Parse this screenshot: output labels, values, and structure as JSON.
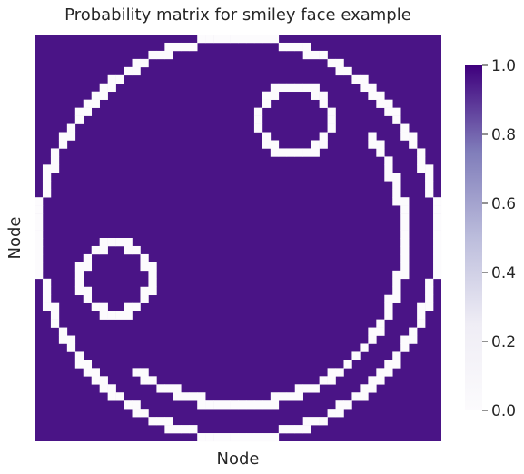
{
  "chart_data": {
    "type": "heatmap",
    "title": "Probability matrix for smiley face example",
    "xlabel": "Node",
    "ylabel": "Node",
    "colormap": "Purples",
    "colors": {
      "low": "#fcfbfd",
      "high": "#3f007d",
      "cell_off": "#4a1486",
      "cell_on": "#fcfbfd"
    },
    "vmin": 0.0,
    "vmax": 1.0,
    "colorbar_ticks": [
      "0.0",
      "0.2",
      "0.4",
      "0.6",
      "0.8",
      "1.0"
    ],
    "grid_size": 50,
    "description_of_values": "binary matrix: 1 = dark purple cell, 0 = white cell (smiley outline)",
    "outline_circle": {
      "center": [
        24.5,
        24.5
      ],
      "radius": 24.5
    },
    "inner_circle": {
      "center": [
        24.5,
        24.5
      ],
      "radius": 20.5
    },
    "eye_1": {
      "center": [
        31.5,
        10.0
      ],
      "radius": 4.3
    },
    "eye_2": {
      "center": [
        9.5,
        29.5
      ],
      "radius": 4.3
    },
    "smile_arc": {
      "center": [
        24.5,
        24.5
      ],
      "radius": 20.5,
      "from_deg": -40,
      "to_deg": 130
    }
  }
}
